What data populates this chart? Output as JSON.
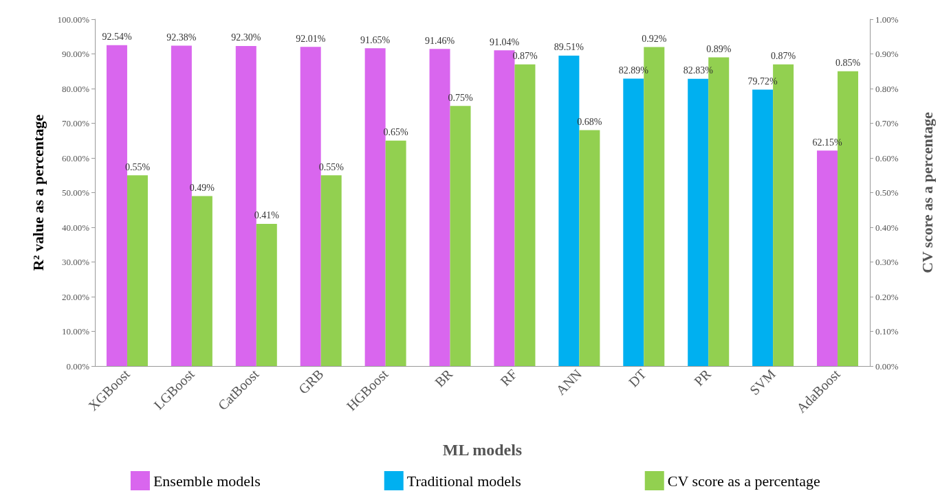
{
  "chart_data": {
    "type": "bar",
    "xlabel": "ML models",
    "ylabel": "R² value as a percentage",
    "y2label": "CV score as a percentage",
    "categories": [
      "XGBoost",
      "LGBoost",
      "CatBoost",
      "GRB",
      "HGBoost",
      "BR",
      "RF",
      "ANN",
      "DT",
      "PR",
      "SVM",
      "AdaBoost"
    ],
    "stacked": true,
    "series": [
      {
        "name": "Ensemble models",
        "color": "#d966ee",
        "values": [
          92.54,
          92.38,
          92.3,
          92.01,
          91.65,
          91.46,
          91.04,
          null,
          null,
          null,
          null,
          62.15
        ],
        "value_labels": [
          "92.54%",
          "92.38%",
          "92.30%",
          "92.01%",
          "91.65%",
          "91.46%",
          "91.04%",
          null,
          null,
          null,
          null,
          "62.15%"
        ]
      },
      {
        "name": "Traditional models",
        "color": "#00b0f0",
        "values": [
          null,
          null,
          null,
          null,
          null,
          null,
          null,
          89.51,
          82.89,
          82.83,
          79.72,
          null
        ],
        "value_labels": [
          null,
          null,
          null,
          null,
          null,
          null,
          null,
          "89.51%",
          "82.89%",
          "82.83%",
          "79.72%",
          null
        ]
      },
      {
        "name": "CV score as a percentage",
        "color": "#92d050",
        "axis": "y2",
        "values": [
          0.55,
          0.49,
          0.41,
          0.55,
          0.65,
          0.75,
          0.87,
          0.68,
          0.92,
          0.89,
          0.87,
          0.85
        ],
        "value_labels": [
          "0.55%",
          "0.49%",
          "0.41%",
          "0.55%",
          "0.65%",
          "0.75%",
          "0.87%",
          "0.68%",
          "0.92%",
          "0.89%",
          "0.87%",
          "0.85%"
        ]
      }
    ],
    "ylim": [
      0,
      100
    ],
    "yticks": [
      {
        "value": 0,
        "label": "0.00%"
      },
      {
        "value": 10,
        "label": "10.00%"
      },
      {
        "value": 20,
        "label": "20.00%"
      },
      {
        "value": 30,
        "label": "30.00%"
      },
      {
        "value": 40,
        "label": "40.00%"
      },
      {
        "value": 50,
        "label": "50.00%"
      },
      {
        "value": 60,
        "label": "60.00%"
      },
      {
        "value": 70,
        "label": "70.00%"
      },
      {
        "value": 80,
        "label": "80.00%"
      },
      {
        "value": 90,
        "label": "90.00%"
      },
      {
        "value": 100,
        "label": "100.00%"
      }
    ],
    "y2lim": [
      0,
      1
    ],
    "y2ticks": [
      {
        "value": 0,
        "label": "0.00%"
      },
      {
        "value": 0.1,
        "label": "0.10%"
      },
      {
        "value": 0.2,
        "label": "0.20%"
      },
      {
        "value": 0.3,
        "label": "0.30%"
      },
      {
        "value": 0.4,
        "label": "0.40%"
      },
      {
        "value": 0.5,
        "label": "0.50%"
      },
      {
        "value": 0.6,
        "label": "0.60%"
      },
      {
        "value": 0.7,
        "label": "0.70%"
      },
      {
        "value": 0.8,
        "label": "0.80%"
      },
      {
        "value": 0.9,
        "label": "0.90%"
      },
      {
        "value": 1,
        "label": "1.00%"
      }
    ],
    "grid": false,
    "legend": "bottom"
  }
}
